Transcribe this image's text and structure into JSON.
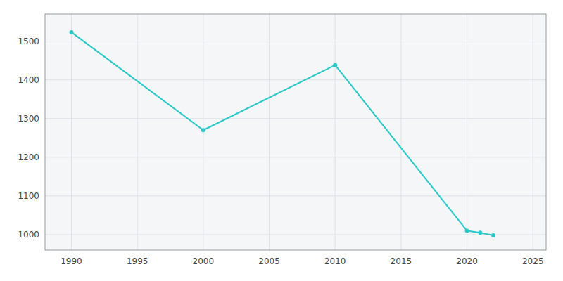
{
  "chart_data": {
    "type": "line",
    "x": [
      1990,
      2000,
      2010,
      2020,
      2021,
      2022
    ],
    "values": [
      1523,
      1270,
      1438,
      1010,
      1005,
      998
    ],
    "color": "#29c7c7",
    "marker": "circle",
    "xlim": [
      1988,
      2026
    ],
    "ylim": [
      960,
      1570
    ],
    "xticks": [
      1990,
      1995,
      2000,
      2005,
      2010,
      2015,
      2020,
      2025
    ],
    "yticks": [
      1000,
      1100,
      1200,
      1300,
      1400,
      1500
    ],
    "grid": true
  }
}
